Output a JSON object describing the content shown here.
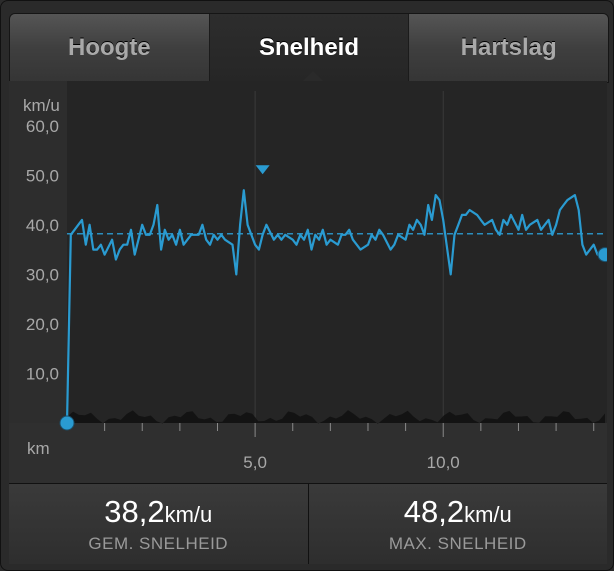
{
  "tabs": [
    {
      "label": "Hoogte"
    },
    {
      "label": "Snelheid"
    },
    {
      "label": "Hartslag"
    }
  ],
  "colors": {
    "line": "#2a9bd1",
    "avg_line": "#2a8fbf",
    "elevation_fill": "#111111"
  },
  "stats": {
    "avg": {
      "value": "38,2",
      "unit": "km/u",
      "label": "GEM. SNELHEID"
    },
    "max": {
      "value": "48,2",
      "unit": "km/u",
      "label": "MAX. SNELHEID"
    }
  },
  "chart_data": {
    "type": "line",
    "ylabel": "km/u",
    "xlabel": "km",
    "ylim": [
      0,
      65
    ],
    "xlim": [
      0,
      14.3
    ],
    "y_ticks": [
      "10,0",
      "20,0",
      "30,0",
      "40,0",
      "50,0",
      "60,0"
    ],
    "y_tick_values": [
      10,
      20,
      30,
      40,
      50,
      60
    ],
    "x_ticks": [
      "5,0",
      "10,0"
    ],
    "x_tick_values": [
      5,
      10
    ],
    "average": 38.2,
    "max_marker": {
      "x": 5.2,
      "y": 48.2
    },
    "series": [
      {
        "x": [
          0,
          0.1,
          0.3,
          0.4,
          0.5,
          0.6,
          0.7,
          0.8,
          0.9,
          1.0,
          1.2,
          1.3,
          1.4,
          1.5,
          1.6,
          1.7,
          1.8,
          2.0,
          2.1,
          2.2,
          2.3,
          2.4,
          2.5,
          2.6,
          2.7,
          2.8,
          2.9,
          3.0,
          3.1,
          3.2,
          3.3,
          3.5,
          3.6,
          3.7,
          3.8,
          3.9,
          4.0,
          4.1,
          4.2,
          4.4,
          4.5,
          4.6,
          4.7,
          4.8,
          5.0,
          5.1,
          5.2,
          5.3,
          5.5,
          5.6,
          5.7,
          5.8,
          6.0,
          6.1,
          6.2,
          6.3,
          6.4,
          6.5,
          6.6,
          6.7,
          6.8,
          6.9,
          7.0,
          7.2,
          7.3,
          7.4,
          7.5,
          7.6,
          7.8,
          8.0,
          8.1,
          8.2,
          8.3,
          8.4,
          8.6,
          8.7,
          8.8,
          9.0,
          9.1,
          9.2,
          9.3,
          9.4,
          9.5,
          9.6,
          9.7,
          9.8,
          9.9,
          10.0,
          10.2,
          10.3,
          10.4,
          10.5,
          10.6,
          10.7,
          10.9,
          11.0,
          11.1,
          11.3,
          11.4,
          11.5,
          11.6,
          11.7,
          11.8,
          12.0,
          12.1,
          12.2,
          12.3,
          12.5,
          12.6,
          12.7,
          12.8,
          12.9,
          13.0,
          13.1,
          13.2,
          13.3,
          13.5,
          13.6,
          13.7,
          13.8,
          13.9,
          14.0,
          14.1,
          14.2,
          14.3
        ],
        "y": [
          0,
          38,
          40,
          41,
          36,
          40,
          35,
          35,
          36,
          34,
          37,
          33,
          35,
          36,
          36,
          39,
          34,
          40,
          38,
          38,
          40,
          44,
          35,
          39,
          37,
          38,
          36,
          39,
          36,
          37,
          38,
          38,
          40,
          37,
          36,
          38,
          37,
          38,
          37,
          36,
          30,
          40,
          47,
          40,
          36,
          35,
          38,
          40,
          37,
          38,
          37,
          38,
          37,
          36,
          38,
          37,
          39,
          35,
          38,
          37,
          39,
          36,
          37,
          36,
          38,
          38,
          39,
          37,
          35,
          36,
          38,
          37,
          39,
          38,
          35,
          36,
          38,
          37,
          40,
          39,
          41,
          40,
          38,
          44,
          41,
          46,
          45,
          41,
          30,
          38,
          40,
          42,
          42,
          43,
          42,
          41,
          40,
          41,
          39,
          38,
          41,
          40,
          42,
          39,
          42,
          39,
          40,
          41,
          39,
          40,
          41,
          38,
          40,
          43,
          44,
          45,
          46,
          43,
          36,
          34,
          35,
          36,
          34,
          35,
          34
        ]
      }
    ],
    "elevation_baseline": true
  }
}
